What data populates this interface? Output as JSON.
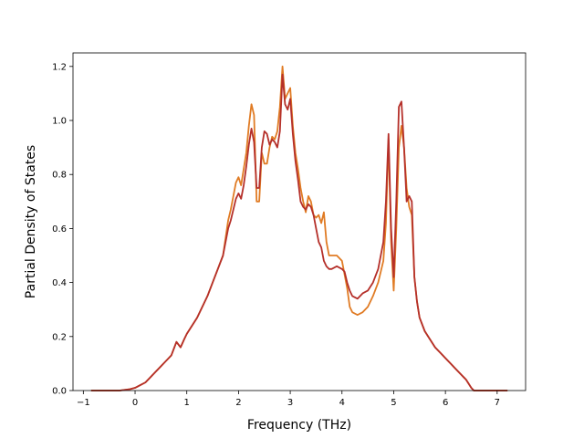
{
  "chart_data": {
    "type": "line",
    "title": "",
    "xlabel": "Frequency (THz)",
    "ylabel": "Partial Density of States",
    "xlim": [
      -1.2,
      7.55
    ],
    "ylim": [
      0,
      1.25
    ],
    "xticks": [
      -1,
      0,
      1,
      2,
      3,
      4,
      5,
      6,
      7
    ],
    "yticks": [
      0.0,
      0.2,
      0.4,
      0.6,
      0.8,
      1.0,
      1.2
    ],
    "xtick_labels": [
      "−1",
      "0",
      "1",
      "2",
      "3",
      "4",
      "5",
      "6",
      "7"
    ],
    "ytick_labels": [
      "0.0",
      "0.2",
      "0.4",
      "0.6",
      "0.8",
      "1.0",
      "1.2"
    ],
    "grid": false,
    "legend": "none",
    "series": [
      {
        "color": "#e07b24",
        "x": [
          -0.85,
          -0.3,
          -0.1,
          0.0,
          0.1,
          0.2,
          0.3,
          0.4,
          0.5,
          0.6,
          0.7,
          0.8,
          0.88,
          0.95,
          1.0,
          1.1,
          1.2,
          1.3,
          1.4,
          1.5,
          1.6,
          1.7,
          1.8,
          1.85,
          1.9,
          1.95,
          2.0,
          2.05,
          2.1,
          2.15,
          2.2,
          2.25,
          2.3,
          2.35,
          2.4,
          2.45,
          2.5,
          2.55,
          2.6,
          2.65,
          2.7,
          2.75,
          2.8,
          2.85,
          2.9,
          2.95,
          3.0,
          3.05,
          3.1,
          3.15,
          3.2,
          3.25,
          3.3,
          3.35,
          3.4,
          3.45,
          3.5,
          3.55,
          3.6,
          3.65,
          3.7,
          3.75,
          3.8,
          3.9,
          4.0,
          4.05,
          4.1,
          4.15,
          4.2,
          4.3,
          4.4,
          4.5,
          4.6,
          4.7,
          4.8,
          4.85,
          4.9,
          4.95,
          5.0,
          5.05,
          5.1,
          5.15,
          5.2,
          5.25,
          5.3,
          5.35,
          5.4,
          5.45,
          5.5,
          5.6,
          5.7,
          5.8,
          5.9,
          6.0,
          6.1,
          6.2,
          6.3,
          6.4,
          6.5,
          6.55,
          6.6,
          7.2
        ],
        "y": [
          0.0,
          0.0,
          0.005,
          0.01,
          0.02,
          0.03,
          0.05,
          0.07,
          0.09,
          0.11,
          0.13,
          0.18,
          0.16,
          0.19,
          0.21,
          0.24,
          0.27,
          0.31,
          0.35,
          0.4,
          0.45,
          0.5,
          0.63,
          0.67,
          0.72,
          0.77,
          0.79,
          0.76,
          0.82,
          0.88,
          0.98,
          1.06,
          1.02,
          0.7,
          0.7,
          0.88,
          0.84,
          0.84,
          0.9,
          0.94,
          0.93,
          0.96,
          1.05,
          1.2,
          1.08,
          1.1,
          1.12,
          0.98,
          0.88,
          0.82,
          0.75,
          0.7,
          0.66,
          0.72,
          0.7,
          0.65,
          0.64,
          0.65,
          0.62,
          0.66,
          0.55,
          0.5,
          0.5,
          0.5,
          0.48,
          0.43,
          0.38,
          0.31,
          0.29,
          0.28,
          0.29,
          0.31,
          0.35,
          0.4,
          0.48,
          0.62,
          0.93,
          0.55,
          0.37,
          0.6,
          0.9,
          0.98,
          0.9,
          0.75,
          0.68,
          0.65,
          0.42,
          0.33,
          0.27,
          0.22,
          0.19,
          0.16,
          0.14,
          0.12,
          0.1,
          0.08,
          0.06,
          0.04,
          0.01,
          0.0,
          0.0,
          0.0
        ]
      },
      {
        "color": "#b5302a",
        "x": [
          -0.85,
          -0.3,
          -0.1,
          0.0,
          0.1,
          0.2,
          0.3,
          0.4,
          0.5,
          0.6,
          0.7,
          0.8,
          0.88,
          0.95,
          1.0,
          1.1,
          1.2,
          1.3,
          1.4,
          1.5,
          1.6,
          1.7,
          1.8,
          1.85,
          1.9,
          1.95,
          2.0,
          2.05,
          2.1,
          2.15,
          2.2,
          2.25,
          2.3,
          2.35,
          2.4,
          2.45,
          2.5,
          2.55,
          2.6,
          2.65,
          2.7,
          2.75,
          2.8,
          2.85,
          2.9,
          2.95,
          3.0,
          3.05,
          3.1,
          3.15,
          3.2,
          3.25,
          3.3,
          3.35,
          3.4,
          3.45,
          3.5,
          3.55,
          3.6,
          3.65,
          3.7,
          3.75,
          3.8,
          3.9,
          4.0,
          4.05,
          4.1,
          4.15,
          4.2,
          4.3,
          4.4,
          4.5,
          4.6,
          4.7,
          4.8,
          4.85,
          4.9,
          4.95,
          5.0,
          5.05,
          5.1,
          5.15,
          5.2,
          5.25,
          5.3,
          5.35,
          5.4,
          5.45,
          5.5,
          5.6,
          5.7,
          5.8,
          5.9,
          6.0,
          6.1,
          6.2,
          6.3,
          6.4,
          6.5,
          6.55,
          6.6,
          7.2
        ],
        "y": [
          0.0,
          0.0,
          0.005,
          0.01,
          0.02,
          0.03,
          0.05,
          0.07,
          0.09,
          0.11,
          0.13,
          0.18,
          0.16,
          0.19,
          0.21,
          0.24,
          0.27,
          0.31,
          0.35,
          0.4,
          0.45,
          0.5,
          0.6,
          0.63,
          0.67,
          0.71,
          0.73,
          0.71,
          0.76,
          0.83,
          0.91,
          0.97,
          0.92,
          0.75,
          0.75,
          0.9,
          0.96,
          0.95,
          0.91,
          0.93,
          0.92,
          0.9,
          0.96,
          1.17,
          1.06,
          1.04,
          1.08,
          0.95,
          0.85,
          0.78,
          0.7,
          0.68,
          0.67,
          0.69,
          0.68,
          0.65,
          0.6,
          0.55,
          0.53,
          0.48,
          0.46,
          0.45,
          0.45,
          0.46,
          0.45,
          0.44,
          0.4,
          0.37,
          0.35,
          0.34,
          0.36,
          0.37,
          0.4,
          0.45,
          0.55,
          0.7,
          0.95,
          0.6,
          0.42,
          0.7,
          1.05,
          1.07,
          0.9,
          0.7,
          0.72,
          0.7,
          0.42,
          0.33,
          0.27,
          0.22,
          0.19,
          0.16,
          0.14,
          0.12,
          0.1,
          0.08,
          0.06,
          0.04,
          0.01,
          0.0,
          0.0,
          0.0
        ]
      }
    ]
  }
}
